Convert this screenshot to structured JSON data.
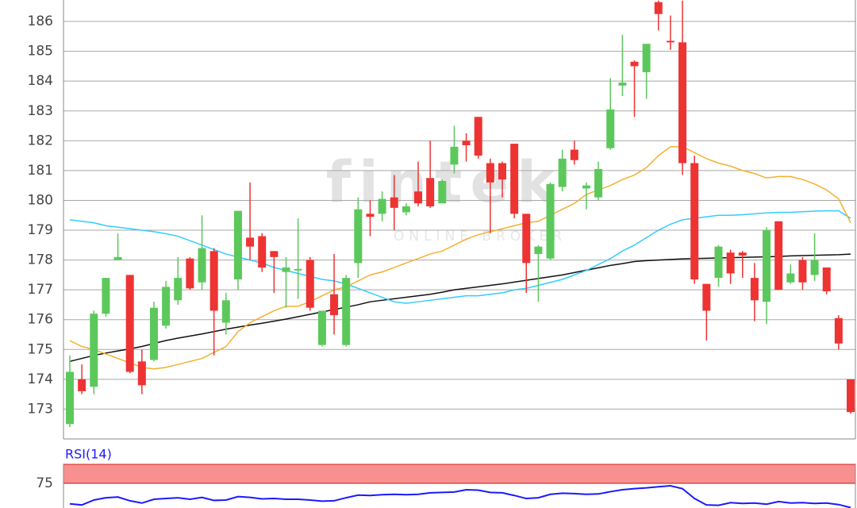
{
  "chart_data": {
    "type": "candlestick",
    "watermark": "fintek",
    "watermark_sub": "ONLINE BROKER",
    "up_color": "#5cc85c",
    "down_color": "#ee3333",
    "ylim": [
      172,
      186.72
    ],
    "yticks": [
      173,
      174,
      175,
      176,
      177,
      178,
      179,
      180,
      181,
      182,
      183,
      184,
      185,
      186
    ],
    "grid": true,
    "open": [
      172.5,
      174.0,
      173.75,
      176.2,
      178.0,
      177.5,
      174.6,
      174.65,
      175.8,
      176.65,
      178.05,
      177.25,
      178.3,
      175.9,
      177.35,
      178.75,
      178.8,
      178.3,
      177.6,
      177.65,
      178.0,
      175.15,
      176.85,
      175.15,
      177.9,
      179.55,
      179.55,
      180.1,
      179.6,
      180.3,
      180.75,
      179.9,
      181.2,
      182.0,
      182.8,
      181.25,
      181.25,
      181.9,
      179.55,
      178.2,
      178.05,
      180.45,
      181.7,
      180.4,
      180.1,
      181.75,
      183.85,
      184.65,
      184.3,
      186.65,
      185.35,
      185.3,
      181.25,
      177.2,
      177.4,
      178.25,
      178.25,
      177.4,
      176.6,
      179.3,
      177.25,
      178.0,
      177.5,
      177.75,
      176.05,
      174.0
    ],
    "high": [
      174.8,
      174.5,
      176.3,
      177.4,
      178.9,
      177.5,
      175.0,
      176.6,
      177.3,
      178.1,
      178.1,
      179.5,
      178.4,
      176.9,
      179.65,
      180.6,
      178.9,
      178.3,
      178.1,
      179.4,
      178.1,
      176.3,
      178.2,
      177.5,
      180.1,
      180.0,
      180.3,
      180.85,
      179.9,
      181.3,
      182.0,
      180.7,
      182.5,
      182.25,
      182.8,
      181.4,
      181.3,
      181.9,
      179.55,
      178.5,
      180.6,
      181.7,
      182.0,
      180.6,
      181.3,
      184.1,
      185.55,
      184.7,
      185.25,
      186.7,
      186.2,
      186.7,
      181.5,
      177.2,
      178.5,
      178.35,
      178.3,
      177.9,
      179.1,
      179.3,
      177.85,
      178.1,
      178.9,
      177.75,
      176.15,
      174.0
    ],
    "low": [
      172.4,
      173.5,
      173.5,
      176.1,
      178.0,
      174.2,
      173.5,
      174.6,
      175.7,
      176.5,
      177.0,
      177.0,
      174.8,
      175.5,
      177.0,
      178.0,
      177.6,
      176.9,
      176.4,
      176.7,
      176.3,
      175.1,
      175.5,
      175.1,
      177.4,
      178.8,
      179.3,
      179.0,
      179.5,
      179.8,
      179.75,
      179.9,
      180.9,
      181.3,
      181.4,
      178.9,
      180.1,
      179.4,
      176.9,
      176.6,
      178.0,
      180.3,
      181.2,
      179.7,
      180.0,
      181.7,
      183.5,
      182.8,
      183.4,
      185.7,
      185.05,
      180.85,
      177.2,
      175.3,
      177.1,
      177.2,
      177.4,
      175.95,
      175.85,
      177.0,
      177.2,
      177.0,
      177.3,
      176.85,
      175.0,
      172.85
    ],
    "close": [
      174.25,
      173.6,
      176.2,
      177.4,
      178.1,
      174.25,
      173.8,
      176.4,
      177.1,
      177.4,
      177.05,
      178.4,
      176.3,
      176.65,
      179.65,
      178.45,
      177.75,
      178.1,
      177.75,
      177.7,
      176.4,
      176.3,
      176.15,
      177.4,
      179.7,
      179.45,
      180.05,
      179.75,
      179.8,
      179.9,
      179.8,
      180.65,
      181.8,
      181.85,
      181.5,
      180.6,
      180.7,
      179.55,
      177.9,
      178.45,
      180.55,
      181.4,
      181.35,
      180.5,
      181.05,
      183.05,
      183.95,
      184.5,
      185.25,
      186.25,
      185.3,
      181.25,
      177.35,
      176.3,
      178.45,
      177.55,
      178.15,
      176.65,
      179.0,
      177.0,
      177.55,
      177.25,
      178.0,
      176.95,
      175.2,
      172.9
    ],
    "moving_averages": [
      {
        "color": "#111111",
        "values": [
          174.6,
          174.7,
          174.8,
          174.88,
          174.95,
          175.02,
          175.1,
          175.2,
          175.3,
          175.38,
          175.45,
          175.52,
          175.6,
          175.68,
          175.75,
          175.82,
          175.88,
          175.95,
          176.02,
          176.1,
          176.18,
          176.26,
          176.34,
          176.42,
          176.5,
          176.6,
          176.65,
          176.7,
          176.75,
          176.8,
          176.85,
          176.92,
          177.0,
          177.05,
          177.1,
          177.15,
          177.2,
          177.26,
          177.32,
          177.38,
          177.44,
          177.5,
          177.58,
          177.66,
          177.74,
          177.82,
          177.88,
          177.95,
          177.98,
          178.0,
          178.02,
          178.04,
          178.05,
          178.06,
          178.07,
          178.08,
          178.09,
          178.1,
          178.11,
          178.12,
          178.14,
          178.15,
          178.16,
          178.17,
          178.18,
          178.2
        ]
      },
      {
        "color": "#33ccff",
        "values": [
          179.35,
          179.3,
          179.25,
          179.15,
          179.1,
          179.05,
          179.0,
          178.95,
          178.88,
          178.8,
          178.65,
          178.5,
          178.35,
          178.2,
          178.1,
          178.0,
          177.9,
          177.75,
          177.65,
          177.55,
          177.45,
          177.35,
          177.3,
          177.2,
          177.05,
          176.9,
          176.75,
          176.6,
          176.55,
          176.6,
          176.65,
          176.7,
          176.75,
          176.8,
          176.8,
          176.85,
          176.9,
          177.0,
          177.05,
          177.15,
          177.25,
          177.35,
          177.5,
          177.65,
          177.85,
          178.05,
          178.3,
          178.5,
          178.75,
          179.0,
          179.2,
          179.35,
          179.4,
          179.45,
          179.5,
          179.5,
          179.52,
          179.55,
          179.58,
          179.6,
          179.6,
          179.62,
          179.64,
          179.65,
          179.65,
          179.4
        ]
      },
      {
        "color": "#f5b02e",
        "values": [
          175.3,
          175.1,
          175.0,
          174.85,
          174.7,
          174.55,
          174.4,
          174.35,
          174.4,
          174.5,
          174.6,
          174.7,
          174.9,
          175.1,
          175.6,
          175.9,
          176.1,
          176.3,
          176.45,
          176.45,
          176.6,
          176.8,
          177.0,
          177.1,
          177.3,
          177.5,
          177.6,
          177.75,
          177.9,
          178.05,
          178.2,
          178.3,
          178.5,
          178.7,
          178.85,
          178.95,
          179.05,
          179.15,
          179.25,
          179.3,
          179.5,
          179.7,
          179.9,
          180.2,
          180.35,
          180.5,
          180.7,
          180.85,
          181.1,
          181.5,
          181.8,
          181.8,
          181.6,
          181.4,
          181.25,
          181.15,
          181.0,
          180.9,
          180.75,
          180.8,
          180.8,
          180.7,
          180.55,
          180.35,
          180.05,
          179.25
        ]
      }
    ],
    "rsi": {
      "label": "RSI(14)",
      "color": "#1a1aff",
      "ylim": [
        68.5,
        80
      ],
      "yticks": [
        75
      ],
      "overbought": [
        75,
        80
      ],
      "band_color": "#f99090",
      "values": [
        69.6,
        69.3,
        70.6,
        71.2,
        71.4,
        70.4,
        69.8,
        70.8,
        71.0,
        71.2,
        70.8,
        71.3,
        70.5,
        70.6,
        71.5,
        71.3,
        70.9,
        71.0,
        70.8,
        70.8,
        70.6,
        70.3,
        70.4,
        71.2,
        71.9,
        71.8,
        72.0,
        72.1,
        72.0,
        72.1,
        72.5,
        72.6,
        72.7,
        73.3,
        73.2,
        72.6,
        72.5,
        71.8,
        71.0,
        71.2,
        72.1,
        72.4,
        72.3,
        72.1,
        72.2,
        72.8,
        73.3,
        73.6,
        73.8,
        74.1,
        74.35,
        73.6,
        71.0,
        69.3,
        69.2,
        69.9,
        69.7,
        69.8,
        69.5,
        70.2,
        69.8,
        69.9,
        69.7,
        69.8,
        69.4,
        68.6
      ]
    }
  }
}
